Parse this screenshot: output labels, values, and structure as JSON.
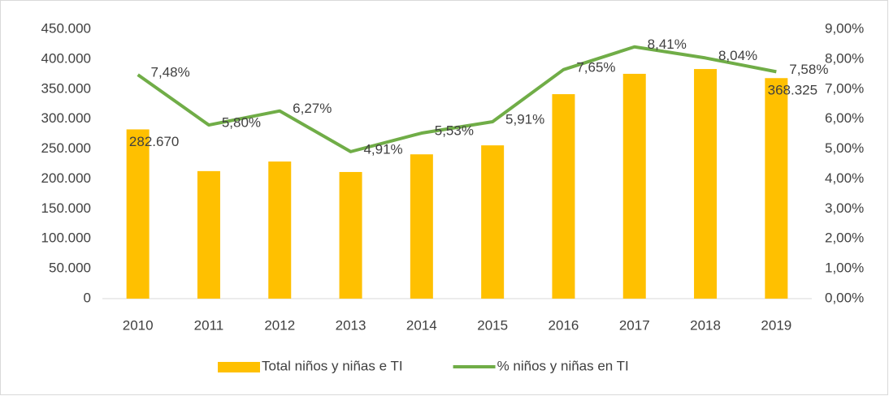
{
  "chart_data": {
    "type": "bar-line",
    "categories": [
      "2010",
      "2011",
      "2012",
      "2013",
      "2014",
      "2015",
      "2016",
      "2017",
      "2018",
      "2019"
    ],
    "series": [
      {
        "name": "Total niños y niñas e TI",
        "color": "#ffc000",
        "type": "bar",
        "values": [
          282670,
          213000,
          229000,
          211500,
          241000,
          256000,
          341500,
          375500,
          383500,
          368325
        ],
        "value_labels": [
          "282.670",
          null,
          null,
          null,
          null,
          null,
          null,
          null,
          null,
          "368.325"
        ]
      },
      {
        "name": "% niños y niñas en TI",
        "color": "#70ad47",
        "type": "line",
        "axis": "y2",
        "values": [
          7.48,
          5.8,
          6.27,
          4.91,
          5.53,
          5.91,
          7.65,
          8.41,
          8.04,
          7.58
        ],
        "value_labels": [
          "7,48%",
          "5,80%",
          "6,27%",
          "4,91%",
          "5,53%",
          "5,91%",
          "7,65%",
          "8,41%",
          "8,04%",
          "7,58%"
        ]
      }
    ],
    "ylim": [
      0,
      450000
    ],
    "yticks": [
      0,
      {
        "value": 50000,
        "label": "50.000"
      },
      {
        "value": 100000,
        "label": "100.000"
      },
      {
        "value": 150000,
        "label": "150.000"
      },
      {
        "value": 200000,
        "label": "200.000"
      },
      {
        "value": 250000,
        "label": "250.000"
      },
      {
        "value": 300000,
        "label": "300.000"
      },
      {
        "value": 350000,
        "label": "350.000"
      },
      {
        "value": 400000,
        "label": "400.000"
      },
      {
        "value": 450000,
        "label": "450.000"
      }
    ],
    "y2lim": [
      0,
      9
    ],
    "y2ticks": [
      {
        "value": 0,
        "label": "0,00%"
      },
      {
        "value": 1,
        "label": "1,00%"
      },
      {
        "value": 2,
        "label": "2,00%"
      },
      {
        "value": 3,
        "label": "3,00%"
      },
      {
        "value": 4,
        "label": "4,00%"
      },
      {
        "value": 5,
        "label": "5,00%"
      },
      {
        "value": 6,
        "label": "6,00%"
      },
      {
        "value": 7,
        "label": "7,00%"
      },
      {
        "value": 8,
        "label": "8,00%"
      },
      {
        "value": 9,
        "label": "9,00%"
      }
    ],
    "legend": "bottom"
  }
}
